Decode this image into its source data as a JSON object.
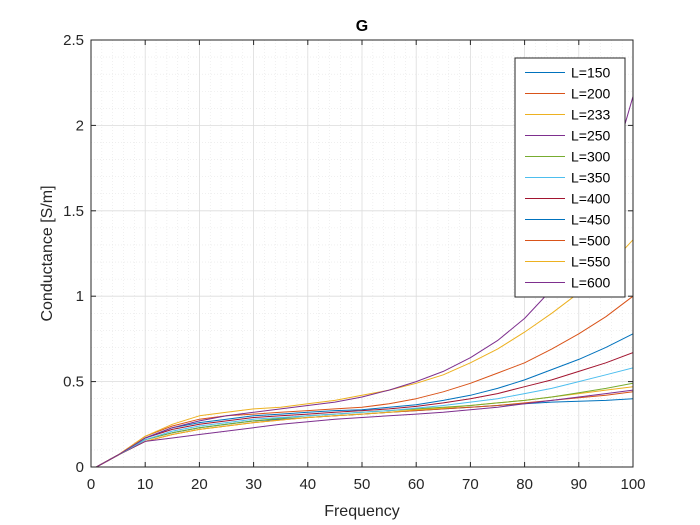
{
  "chart_data": {
    "type": "line",
    "title": "G",
    "xlabel": "Frequency",
    "ylabel": "Conductance [S/m]",
    "xlim": [
      0,
      100
    ],
    "ylim": [
      0,
      2.5
    ],
    "xticks": [
      0,
      10,
      20,
      30,
      40,
      50,
      60,
      70,
      80,
      90,
      100
    ],
    "yticks": [
      0,
      0.5,
      1,
      1.5,
      2,
      2.5
    ],
    "ytick_labels": [
      "0",
      "0.5",
      "1",
      "1.5",
      "2",
      "2.5"
    ],
    "grid": true,
    "minor_grid": true,
    "legend_position": "top-right",
    "x": [
      1,
      5,
      10,
      15,
      20,
      25,
      30,
      35,
      40,
      45,
      50,
      55,
      60,
      65,
      70,
      75,
      80,
      85,
      90,
      95,
      100
    ],
    "series": [
      {
        "name": "L=150",
        "color": "#0072BD",
        "values": [
          0.0,
          0.07,
          0.16,
          0.2,
          0.23,
          0.25,
          0.27,
          0.28,
          0.29,
          0.3,
          0.31,
          0.32,
          0.33,
          0.34,
          0.35,
          0.36,
          0.37,
          0.38,
          0.385,
          0.39,
          0.4
        ]
      },
      {
        "name": "L=200",
        "color": "#D95319",
        "values": [
          0.0,
          0.07,
          0.15,
          0.19,
          0.22,
          0.24,
          0.26,
          0.275,
          0.29,
          0.3,
          0.31,
          0.32,
          0.33,
          0.34,
          0.35,
          0.36,
          0.375,
          0.39,
          0.405,
          0.42,
          0.44
        ]
      },
      {
        "name": "L=233",
        "color": "#EDB120",
        "values": [
          0.0,
          0.07,
          0.15,
          0.19,
          0.22,
          0.24,
          0.26,
          0.275,
          0.29,
          0.3,
          0.31,
          0.32,
          0.335,
          0.345,
          0.36,
          0.375,
          0.39,
          0.41,
          0.43,
          0.45,
          0.47
        ]
      },
      {
        "name": "L=250",
        "color": "#7E2F8E",
        "values": [
          0.0,
          0.07,
          0.15,
          0.17,
          0.19,
          0.21,
          0.23,
          0.25,
          0.265,
          0.28,
          0.29,
          0.3,
          0.31,
          0.32,
          0.335,
          0.35,
          0.37,
          0.39,
          0.41,
          0.43,
          0.45
        ]
      },
      {
        "name": "L=300",
        "color": "#77AC30",
        "values": [
          0.0,
          0.07,
          0.16,
          0.2,
          0.23,
          0.25,
          0.27,
          0.285,
          0.3,
          0.31,
          0.32,
          0.33,
          0.34,
          0.35,
          0.36,
          0.375,
          0.39,
          0.41,
          0.435,
          0.46,
          0.49
        ]
      },
      {
        "name": "L=350",
        "color": "#4DBEEE",
        "values": [
          0.0,
          0.07,
          0.16,
          0.21,
          0.24,
          0.26,
          0.28,
          0.29,
          0.3,
          0.31,
          0.32,
          0.33,
          0.345,
          0.36,
          0.38,
          0.4,
          0.43,
          0.46,
          0.5,
          0.54,
          0.58
        ]
      },
      {
        "name": "L=400",
        "color": "#A2142F",
        "values": [
          0.0,
          0.07,
          0.17,
          0.22,
          0.25,
          0.27,
          0.29,
          0.3,
          0.31,
          0.32,
          0.33,
          0.34,
          0.355,
          0.375,
          0.4,
          0.43,
          0.47,
          0.51,
          0.56,
          0.61,
          0.67
        ]
      },
      {
        "name": "L=450",
        "color": "#0072BD",
        "values": [
          0.0,
          0.07,
          0.17,
          0.23,
          0.26,
          0.28,
          0.3,
          0.31,
          0.32,
          0.33,
          0.335,
          0.35,
          0.365,
          0.39,
          0.42,
          0.46,
          0.51,
          0.57,
          0.63,
          0.7,
          0.78
        ]
      },
      {
        "name": "L=500",
        "color": "#D95319",
        "values": [
          0.0,
          0.07,
          0.18,
          0.24,
          0.28,
          0.3,
          0.31,
          0.32,
          0.33,
          0.34,
          0.35,
          0.37,
          0.4,
          0.44,
          0.49,
          0.55,
          0.61,
          0.69,
          0.78,
          0.88,
          1.0
        ]
      },
      {
        "name": "L=550",
        "color": "#EDB120",
        "values": [
          0.0,
          0.07,
          0.18,
          0.25,
          0.3,
          0.32,
          0.34,
          0.35,
          0.37,
          0.39,
          0.42,
          0.45,
          0.49,
          0.54,
          0.61,
          0.69,
          0.79,
          0.9,
          1.02,
          1.16,
          1.33
        ]
      },
      {
        "name": "L=600",
        "color": "#7E2F8E",
        "values": [
          0.0,
          0.07,
          0.17,
          0.23,
          0.27,
          0.3,
          0.32,
          0.34,
          0.36,
          0.38,
          0.41,
          0.45,
          0.5,
          0.56,
          0.64,
          0.74,
          0.87,
          1.04,
          1.27,
          1.62,
          2.17
        ]
      }
    ]
  }
}
